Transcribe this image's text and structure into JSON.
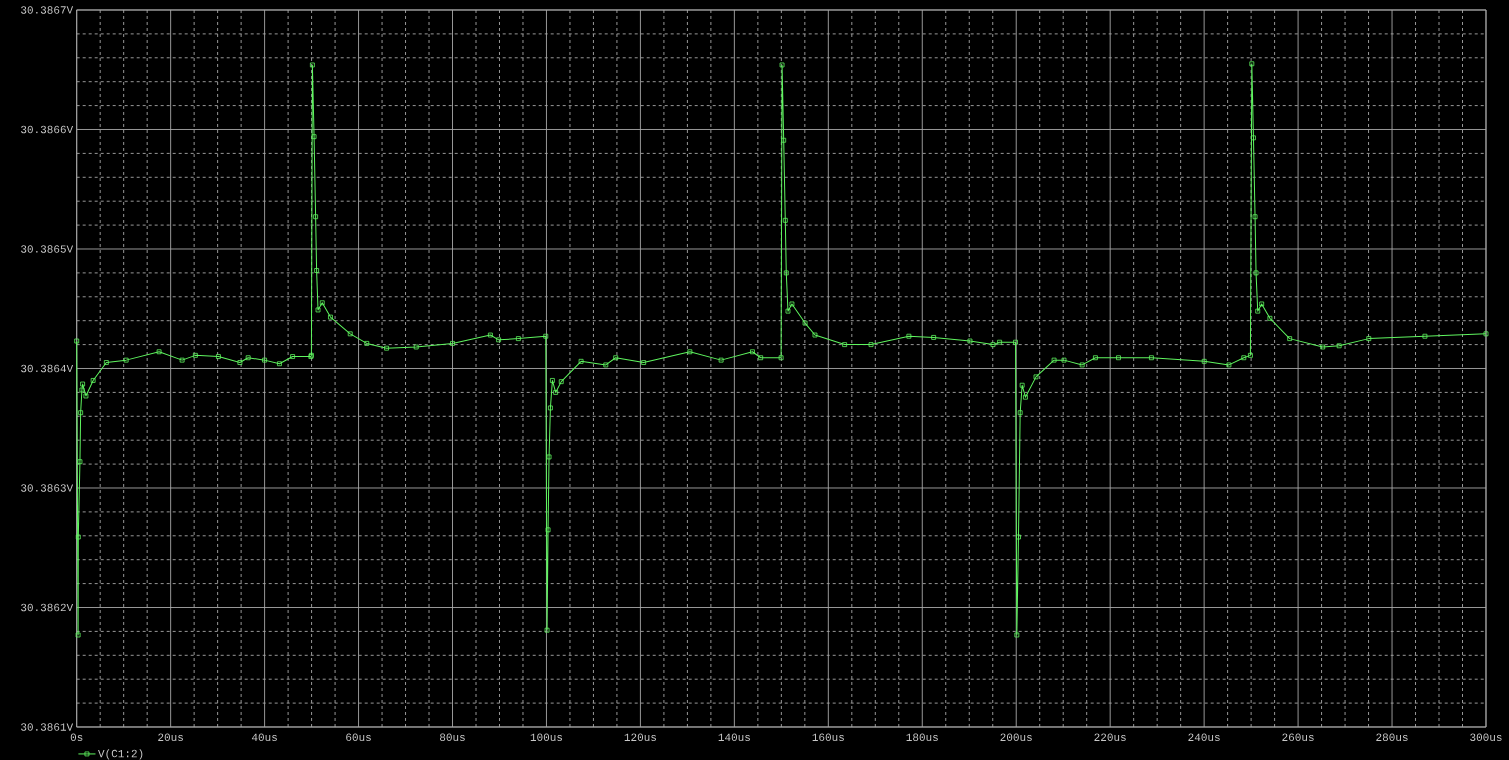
{
  "chart_data": {
    "type": "line",
    "x": [
      0,
      0.3,
      0.34,
      0.69,
      0.84,
      1.11,
      1.26,
      1.96,
      3.5,
      6.31,
      10.53,
      17.54,
      22.44,
      25.26,
      30.17,
      34.74,
      36.5,
      40.0,
      43.16,
      45.96,
      49.85,
      49.96,
      50.17,
      50.53,
      50.86,
      51.07,
      51.37,
      52.27,
      54.02,
      58.23,
      61.75,
      65.96,
      72.27,
      80.0,
      88.06,
      89.81,
      94.02,
      99.85,
      100.13,
      100.34,
      100.55,
      100.84,
      101.26,
      101.96,
      103.15,
      107.37,
      112.63,
      114.74,
      120.69,
      130.53,
      137.18,
      143.85,
      145.6,
      149.95,
      150.15,
      150.5,
      150.84,
      151.05,
      151.41,
      152.25,
      155.05,
      157.16,
      163.47,
      169.09,
      177.15,
      182.42,
      190.15,
      195.05,
      196.46,
      199.85,
      200.13,
      200.48,
      200.84,
      201.26,
      201.96,
      204.21,
      208.06,
      210.17,
      214.04,
      216.86,
      221.77,
      228.78,
      240.02,
      245.28,
      248.44,
      249.85,
      250.15,
      250.5,
      250.84,
      251.05,
      251.41,
      252.25,
      254.0,
      258.21,
      265.24,
      268.74,
      275.05,
      287.0,
      300
    ],
    "series": [
      {
        "name": "V(C1:2)",
        "color": "#5ff55f",
        "values": [
          30.386423,
          30.386177,
          30.386259,
          30.386322,
          30.386363,
          30.386382,
          30.386387,
          30.386377,
          30.38639,
          30.386405,
          30.386407,
          30.386414,
          30.386407,
          30.386411,
          30.38641,
          30.386405,
          30.386409,
          30.386407,
          30.386404,
          30.38641,
          30.38641,
          30.386411,
          30.386654,
          30.386594,
          30.386527,
          30.386482,
          30.386449,
          30.386455,
          30.386443,
          30.386429,
          30.386421,
          30.386417,
          30.386418,
          30.386421,
          30.386428,
          30.386424,
          30.386425,
          30.386427,
          30.386181,
          30.386265,
          30.386326,
          30.386367,
          30.38639,
          30.38638,
          30.386389,
          30.386406,
          30.386403,
          30.386409,
          30.386405,
          30.386414,
          30.386407,
          30.386414,
          30.386409,
          30.386409,
          30.386654,
          30.386591,
          30.386524,
          30.38648,
          30.386448,
          30.386454,
          30.386438,
          30.386428,
          30.38642,
          30.38642,
          30.386427,
          30.386426,
          30.386423,
          30.38642,
          30.386422,
          30.386422,
          30.386177,
          30.386259,
          30.386363,
          30.386386,
          30.386376,
          30.386393,
          30.386407,
          30.386407,
          30.386403,
          30.386409,
          30.386409,
          30.386409,
          30.386406,
          30.386403,
          30.386409,
          30.386411,
          30.386655,
          30.386593,
          30.386527,
          30.38648,
          30.386448,
          30.386454,
          30.386442,
          30.386425,
          30.386418,
          30.386419,
          30.386425,
          30.386427,
          30.386429
        ]
      }
    ],
    "xlim": [
      0,
      300
    ],
    "ylim": [
      30.3861,
      30.3867
    ],
    "xticks": [
      {
        "value": 0,
        "label": "0s"
      },
      {
        "value": 20,
        "label": "20us"
      },
      {
        "value": 40,
        "label": "40us"
      },
      {
        "value": 60,
        "label": "60us"
      },
      {
        "value": 80,
        "label": "80us"
      },
      {
        "value": 100,
        "label": "100us"
      },
      {
        "value": 120,
        "label": "120us"
      },
      {
        "value": 140,
        "label": "140us"
      },
      {
        "value": 160,
        "label": "160us"
      },
      {
        "value": 180,
        "label": "180us"
      },
      {
        "value": 200,
        "label": "200us"
      },
      {
        "value": 220,
        "label": "220us"
      },
      {
        "value": 240,
        "label": "240us"
      },
      {
        "value": 260,
        "label": "260us"
      },
      {
        "value": 280,
        "label": "280us"
      },
      {
        "value": 300,
        "label": "300us"
      }
    ],
    "yticks": [
      {
        "value": 30.3861,
        "label": "30.3861V"
      },
      {
        "value": 30.3862,
        "label": "30.3862V"
      },
      {
        "value": 30.3863,
        "label": "30.3863V"
      },
      {
        "value": 30.3864,
        "label": "30.3864V"
      },
      {
        "value": 30.3865,
        "label": "30.3865V"
      },
      {
        "value": 30.3866,
        "label": "30.3866V"
      },
      {
        "value": 30.3867,
        "label": "30.3867V"
      }
    ],
    "grid": true,
    "legend": "bottom left",
    "marker": "square",
    "line_style": "solid"
  }
}
